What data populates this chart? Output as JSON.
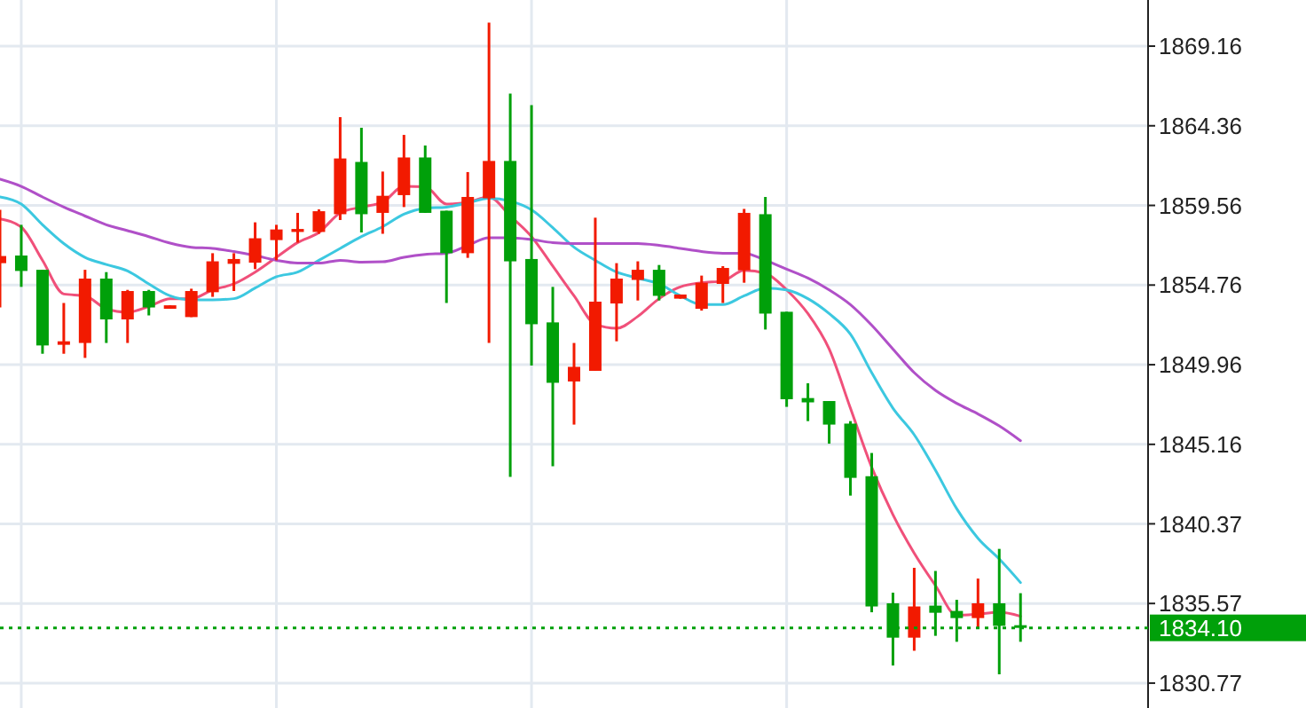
{
  "chart_data": {
    "type": "candlestick",
    "tick_labels": "y",
    "grid": true,
    "categories": [
      null,
      null,
      null,
      null,
      null,
      null,
      null,
      null,
      null,
      null,
      null,
      null,
      null,
      null,
      null,
      null,
      null,
      null,
      null,
      null,
      null,
      null,
      null,
      null,
      null,
      null,
      null,
      null,
      null,
      null,
      null,
      null,
      null,
      null,
      null,
      null,
      null,
      null,
      null,
      null,
      null,
      null,
      null,
      null,
      null,
      null,
      null,
      null,
      null
    ],
    "ylim": [
      1829.27,
      1871.94
    ],
    "yticks": [
      1830.77,
      1835.57,
      1840.37,
      1845.16,
      1849.96,
      1854.76,
      1859.56,
      1864.36,
      1869.16
    ],
    "ohlc": [
      [
        1856.08,
        1859.29,
        1853.41,
        1856.51
      ],
      [
        1856.54,
        1858.39,
        1854.65,
        1855.61
      ],
      [
        1855.68,
        1855.68,
        1850.62,
        1851.12
      ],
      [
        1851.16,
        1853.68,
        1850.62,
        1851.37
      ],
      [
        1851.27,
        1855.68,
        1850.37,
        1855.15
      ],
      [
        1855.15,
        1855.54,
        1851.27,
        1852.69
      ],
      [
        1852.69,
        1854.47,
        1851.27,
        1854.4
      ],
      [
        1854.4,
        1854.47,
        1852.93,
        1853.41
      ],
      [
        1853.33,
        1853.54,
        1853.33,
        1853.54
      ],
      [
        1852.83,
        1854.54,
        1852.83,
        1854.4
      ],
      [
        1854.33,
        1856.68,
        1854.05,
        1856.19
      ],
      [
        1856.04,
        1856.68,
        1854.4,
        1856.33
      ],
      [
        1856.11,
        1858.54,
        1855.72,
        1857.58
      ],
      [
        1857.47,
        1858.39,
        1856.25,
        1858.11
      ],
      [
        1857.96,
        1859.11,
        1857.32,
        1858.14
      ],
      [
        1857.96,
        1859.32,
        1857.85,
        1859.21
      ],
      [
        1859.03,
        1864.88,
        1858.68,
        1862.39
      ],
      [
        1862.18,
        1864.24,
        1857.93,
        1859.03
      ],
      [
        1859.11,
        1861.6,
        1857.85,
        1860.14
      ],
      [
        1860.18,
        1863.81,
        1859.46,
        1862.45
      ],
      [
        1862.45,
        1863.17,
        1859.11,
        1859.11
      ],
      [
        1859.24,
        1859.24,
        1853.68,
        1856.68
      ],
      [
        1856.68,
        1861.57,
        1856.4,
        1860.07
      ],
      [
        1859.99,
        1870.58,
        1851.27,
        1862.24
      ],
      [
        1862.24,
        1866.3,
        1843.2,
        1856.19
      ],
      [
        1856.33,
        1865.6,
        1849.91,
        1852.4
      ],
      [
        1852.51,
        1854.65,
        1843.84,
        1848.87
      ],
      [
        1848.95,
        1851.27,
        1846.35,
        1849.83
      ],
      [
        1849.59,
        1858.82,
        1849.59,
        1853.76
      ],
      [
        1853.65,
        1856.08,
        1851.37,
        1855.15
      ],
      [
        1855.07,
        1856.19,
        1853.83,
        1855.68
      ],
      [
        1855.68,
        1855.97,
        1853.83,
        1854.11
      ],
      [
        1853.94,
        1854.19,
        1853.94,
        1854.19
      ],
      [
        1853.33,
        1855.33,
        1853.22,
        1854.9
      ],
      [
        1854.83,
        1855.9,
        1853.68,
        1855.79
      ],
      [
        1855.65,
        1859.35,
        1854.9,
        1859.11
      ],
      [
        1859.03,
        1860.07,
        1852.08,
        1853.04
      ],
      [
        1853.15,
        1853.15,
        1847.42,
        1847.88
      ],
      [
        1847.95,
        1848.84,
        1846.56,
        1847.69
      ],
      [
        1847.77,
        1847.77,
        1845.2,
        1846.35
      ],
      [
        1846.41,
        1846.56,
        1842.07,
        1843.14
      ],
      [
        1843.24,
        1844.64,
        1835.04,
        1835.39
      ],
      [
        1835.58,
        1836.22,
        1831.83,
        1833.51
      ],
      [
        1833.51,
        1837.72,
        1832.72,
        1835.39
      ],
      [
        1835.44,
        1837.53,
        1833.62,
        1835.01
      ],
      [
        1835.12,
        1835.79,
        1833.26,
        1834.69
      ],
      [
        1834.69,
        1837.07,
        1834.08,
        1835.58
      ],
      [
        1835.58,
        1838.86,
        1831.3,
        1834.22
      ],
      [
        1834.26,
        1836.19,
        1833.26,
        1834.1
      ]
    ],
    "colors": [
      "#f21a00",
      "#00a00a",
      "#00a00a",
      "#f21a00",
      "#f21a00",
      "#00a00a",
      "#f21a00",
      "#00a00a",
      "#f21a00",
      "#f21a00",
      "#f21a00",
      "#f21a00",
      "#f21a00",
      "#f21a00",
      "#f21a00",
      "#f21a00",
      "#f21a00",
      "#00a00a",
      "#f21a00",
      "#f21a00",
      "#00a00a",
      "#00a00a",
      "#f21a00",
      "#f21a00",
      "#00a00a",
      "#00a00a",
      "#00a00a",
      "#f21a00",
      "#f21a00",
      "#f21a00",
      "#f21a00",
      "#00a00a",
      "#f21a00",
      "#f21a00",
      "#f21a00",
      "#f21a00",
      "#00a00a",
      "#00a00a",
      "#00a00a",
      "#00a00a",
      "#00a00a",
      "#00a00a",
      "#00a00a",
      "#f21a00",
      "#00a00a",
      "#00a00a",
      "#f21a00",
      "#00a00a",
      "#00a00a"
    ],
    "series": [
      {
        "type": "line",
        "color": "#f0507a",
        "values": [
          1858.75,
          1858.25,
          1856.25,
          1854.22,
          1854.11,
          1853.33,
          1853.12,
          1853.47,
          1853.94,
          1853.94,
          1854.47,
          1854.83,
          1855.54,
          1856.43,
          1857.32,
          1857.93,
          1859.11,
          1859.46,
          1859.75,
          1860.71,
          1860.68,
          1859.64,
          1859.75,
          1860.07,
          1858.92,
          1857.68,
          1855.9,
          1854.11,
          1852.4,
          1852.15,
          1852.87,
          1853.94,
          1854.65,
          1854.9,
          1855.01,
          1855.65,
          1855.47,
          1854.47,
          1853.04,
          1850.9,
          1847.34,
          1843.78,
          1840.92,
          1838.6,
          1836.65,
          1834.86,
          1834.93,
          1835.04,
          1834.8
        ]
      },
      {
        "type": "line",
        "color": "#3cc8e0",
        "values": [
          1860.07,
          1859.64,
          1858.39,
          1857.26,
          1856.43,
          1856.0,
          1855.61,
          1854.83,
          1854.11,
          1853.87,
          1853.87,
          1853.94,
          1854.58,
          1855.26,
          1855.54,
          1856.25,
          1856.97,
          1857.68,
          1858.28,
          1859.03,
          1859.39,
          1859.46,
          1859.72,
          1859.99,
          1859.82,
          1859.29,
          1858.22,
          1857.04,
          1856.25,
          1855.54,
          1855.18,
          1854.83,
          1854.11,
          1853.58,
          1853.58,
          1854.11,
          1854.58,
          1854.47,
          1853.94,
          1853.04,
          1851.8,
          1849.48,
          1847.34,
          1845.74,
          1843.6,
          1841.28,
          1839.5,
          1838.25,
          1836.83
        ]
      },
      {
        "type": "line",
        "color": "#b050c8",
        "values": [
          1861.14,
          1860.71,
          1860.07,
          1859.46,
          1858.92,
          1858.39,
          1858.04,
          1857.68,
          1857.29,
          1857.04,
          1856.97,
          1856.78,
          1856.54,
          1856.25,
          1856.08,
          1856.08,
          1856.25,
          1856.14,
          1856.16,
          1856.43,
          1856.61,
          1856.68,
          1857.15,
          1857.61,
          1857.61,
          1857.5,
          1857.32,
          1857.26,
          1857.26,
          1857.26,
          1857.26,
          1857.15,
          1856.97,
          1856.78,
          1856.68,
          1856.68,
          1856.25,
          1855.72,
          1855.18,
          1854.47,
          1853.58,
          1852.34,
          1850.9,
          1849.48,
          1848.41,
          1847.63,
          1846.99,
          1846.27,
          1845.38
        ]
      }
    ],
    "ref_lines": [
      {
        "axis": "y",
        "value": 1834.1,
        "label": "1834.10",
        "color": "#00a00a",
        "line_style": "dotted"
      }
    ]
  }
}
